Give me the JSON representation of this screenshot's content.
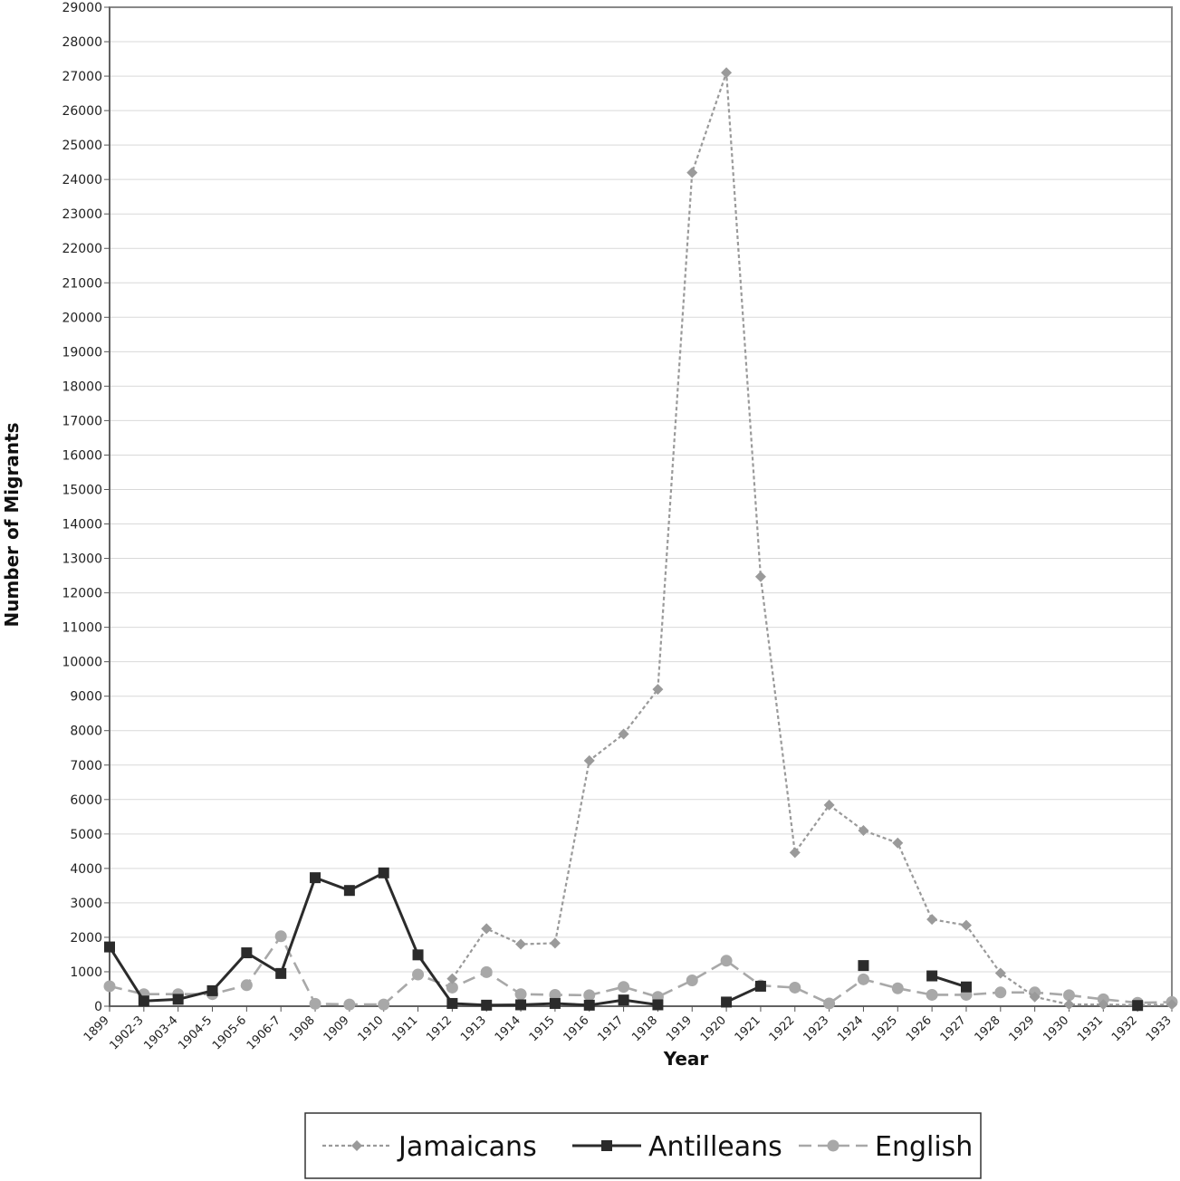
{
  "chart_data": {
    "type": "line",
    "title": "",
    "xlabel": "Year",
    "ylabel": "Number of Migrants",
    "ylim": [
      0,
      29000
    ],
    "ytick_step": 1000,
    "grid": true,
    "legend_position": "bottom",
    "categories": [
      "1899",
      "1902-3",
      "1903-4",
      "1904-5",
      "1905-6",
      "1906-7",
      "1908",
      "1909",
      "1910",
      "1911",
      "1912",
      "1913",
      "1914",
      "1915",
      "1916",
      "1917",
      "1918",
      "1919",
      "1920",
      "1921",
      "1922",
      "1923",
      "1924",
      "1925",
      "1926",
      "1927",
      "1928",
      "1929",
      "1930",
      "1931",
      "1932",
      "1933"
    ],
    "series": [
      {
        "name": "Jamaicans",
        "color": "#9a9a9a",
        "line_style": "dotted",
        "marker": "diamond",
        "values": [
          null,
          null,
          null,
          null,
          null,
          null,
          null,
          null,
          null,
          null,
          800,
          2250,
          1800,
          1830,
          7130,
          7900,
          9200,
          24200,
          27100,
          12470,
          4460,
          5840,
          5100,
          4740,
          2520,
          2350,
          960,
          270,
          50,
          50,
          30,
          50
        ]
      },
      {
        "name": "Antilleans",
        "color": "#2b2b2b",
        "line_style": "solid",
        "marker": "square",
        "values": [
          1720,
          150,
          200,
          450,
          1550,
          950,
          3730,
          3360,
          3870,
          1490,
          80,
          30,
          40,
          80,
          30,
          180,
          40,
          null,
          120,
          580,
          null,
          null,
          1180,
          null,
          880,
          560,
          null,
          null,
          null,
          null,
          20,
          null
        ]
      },
      {
        "name": "English",
        "color": "#a8a8a8",
        "line_style": "dashed",
        "marker": "circle",
        "values": [
          580,
          350,
          350,
          350,
          610,
          2030,
          70,
          50,
          50,
          920,
          540,
          990,
          350,
          330,
          320,
          560,
          270,
          750,
          1320,
          600,
          540,
          80,
          780,
          520,
          330,
          330,
          400,
          400,
          320,
          200,
          100,
          120
        ]
      }
    ]
  }
}
